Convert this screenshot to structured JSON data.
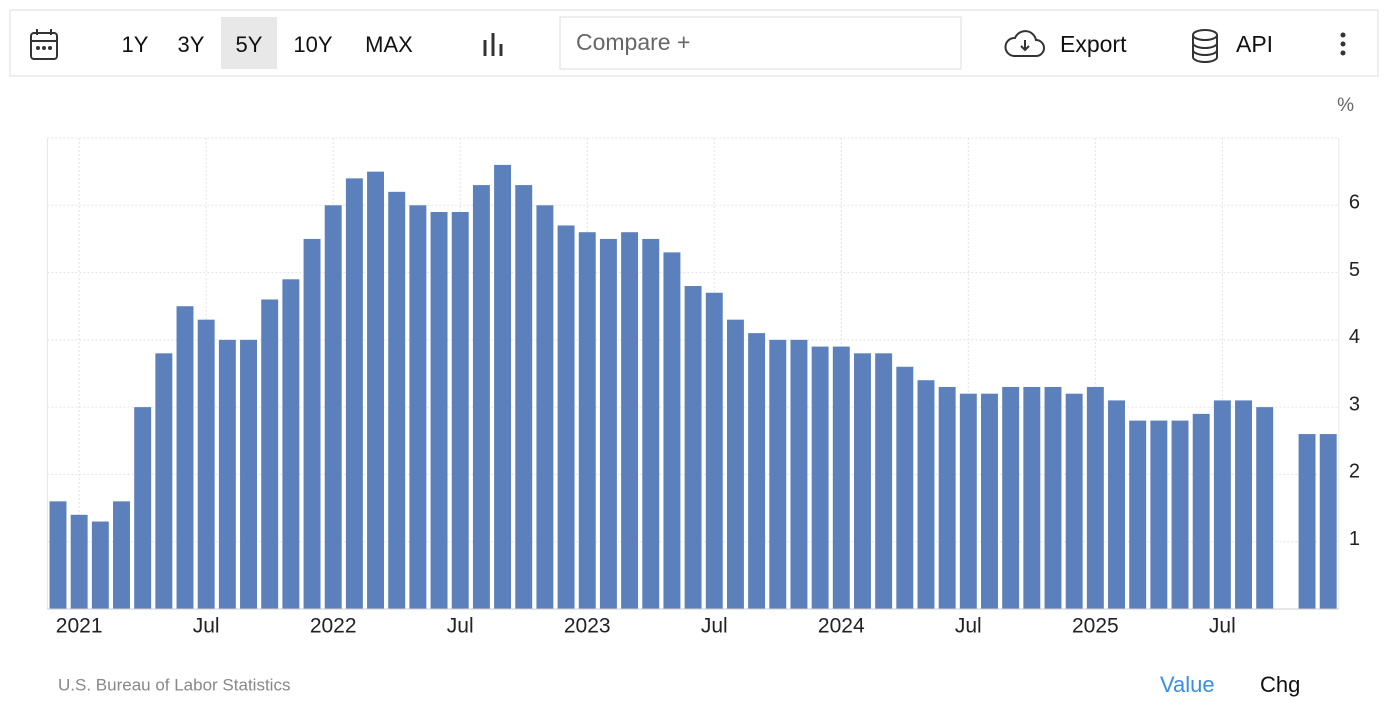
{
  "toolbar": {
    "ranges": [
      "1Y",
      "3Y",
      "5Y",
      "10Y",
      "MAX"
    ],
    "active": "5Y",
    "compare": "Compare +",
    "export": "Export",
    "api": "API"
  },
  "footer": {
    "source": "U.S. Bureau of Labor Statistics",
    "value": "Value",
    "chg": "Chg"
  },
  "chart_data": {
    "type": "bar",
    "unit": "%",
    "categories": [
      null,
      "2021",
      null,
      null,
      null,
      null,
      null,
      "Jul",
      null,
      null,
      null,
      null,
      null,
      "2022",
      null,
      null,
      null,
      null,
      null,
      "Jul",
      null,
      null,
      null,
      null,
      null,
      "2023",
      null,
      null,
      null,
      null,
      null,
      "Jul",
      null,
      null,
      null,
      null,
      null,
      "2024",
      null,
      null,
      null,
      null,
      null,
      "Jul",
      null,
      null,
      null,
      null,
      null,
      "2025",
      null,
      null,
      null,
      null,
      null,
      "Jul",
      null,
      null,
      null,
      null,
      null
    ],
    "values": [
      1.6,
      1.4,
      1.3,
      1.6,
      3.0,
      3.8,
      4.5,
      4.3,
      4.0,
      4.0,
      4.6,
      4.9,
      5.5,
      6.0,
      6.4,
      6.5,
      6.2,
      6.0,
      5.9,
      5.9,
      6.3,
      6.6,
      6.3,
      6.0,
      5.7,
      5.6,
      5.5,
      5.6,
      5.5,
      5.3,
      4.8,
      4.7,
      4.3,
      4.1,
      4.0,
      4.0,
      3.9,
      3.9,
      3.8,
      3.8,
      3.6,
      3.4,
      3.3,
      3.2,
      3.2,
      3.3,
      3.3,
      3.3,
      3.2,
      3.3,
      3.1,
      2.8,
      2.8,
      2.8,
      2.9,
      3.1,
      3.1,
      3.0,
      null,
      2.6,
      2.6
    ],
    "color": "#5b80bb",
    "ylim": [
      0,
      7
    ],
    "yticks": [
      1,
      2,
      3,
      4,
      5,
      6
    ],
    "grid": true
  }
}
